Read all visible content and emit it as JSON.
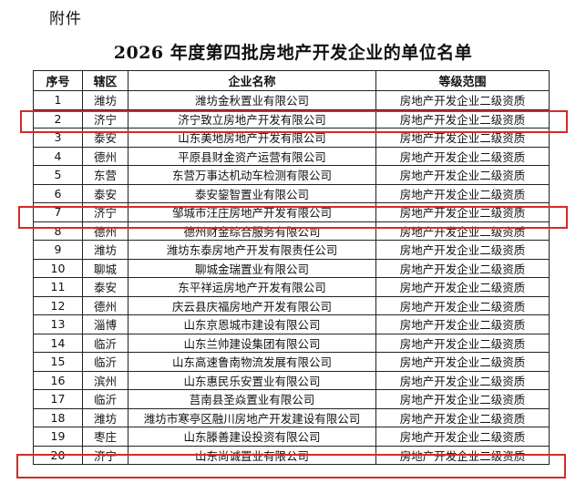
{
  "header": {
    "attachment_label": "附件",
    "title": "2026 年度第四批房地产开发企业的单位名单"
  },
  "table": {
    "columns": [
      "序号",
      "辖区",
      "企业名称",
      "等级范围"
    ],
    "rows": [
      {
        "no": "1",
        "district": "潍坊",
        "company": "潍坊金秋置业有限公司",
        "level": "房地产开发企业二级资质"
      },
      {
        "no": "2",
        "district": "济宁",
        "company": "济宁致立房地产开发有限公司",
        "level": "房地产开发企业二级资质"
      },
      {
        "no": "3",
        "district": "泰安",
        "company": "山东美地房地产开发有限公司",
        "level": "房地产开发企业二级资质"
      },
      {
        "no": "4",
        "district": "德州",
        "company": "平原县财金资产运营有限公司",
        "level": "房地产开发企业二级资质"
      },
      {
        "no": "5",
        "district": "东营",
        "company": "东营万事达机动车检测有限公司",
        "level": "房地产开发企业二级资质"
      },
      {
        "no": "6",
        "district": "泰安",
        "company": "泰安鋆智置业有限公司",
        "level": "房地产开发企业二级资质"
      },
      {
        "no": "7",
        "district": "济宁",
        "company": "邹城市汪庄房地产开发有限公司",
        "level": "房地产开发企业二级资质"
      },
      {
        "no": "8",
        "district": "德州",
        "company": "德州财金综合服务有限公司",
        "level": "房地产开发企业二级资质"
      },
      {
        "no": "9",
        "district": "潍坊",
        "company": "潍坊东泰房地产开发有限责任公司",
        "level": "房地产开发企业二级资质"
      },
      {
        "no": "10",
        "district": "聊城",
        "company": "聊城金瑞置业有限公司",
        "level": "房地产开发企业二级资质"
      },
      {
        "no": "11",
        "district": "泰安",
        "company": "东平祥运房地产开发有限公司",
        "level": "房地产开发企业二级资质"
      },
      {
        "no": "12",
        "district": "德州",
        "company": "庆云县庆福房地产开发有限公司",
        "level": "房地产开发企业二级资质"
      },
      {
        "no": "13",
        "district": "淄博",
        "company": "山东京恩城市建设有限公司",
        "level": "房地产开发企业二级资质"
      },
      {
        "no": "14",
        "district": "临沂",
        "company": "山东兰帅建设集团有限公司",
        "level": "房地产开发企业二级资质"
      },
      {
        "no": "15",
        "district": "临沂",
        "company": "山东高速鲁南物流发展有限公司",
        "level": "房地产开发企业二级资质"
      },
      {
        "no": "16",
        "district": "滨州",
        "company": "山东惠民乐安置业有限公司",
        "level": "房地产开发企业二级资质"
      },
      {
        "no": "17",
        "district": "临沂",
        "company": "莒南县圣焱置业有限公司",
        "level": "房地产开发企业二级资质"
      },
      {
        "no": "18",
        "district": "潍坊",
        "company": "潍坊市寒亭区融川房地产开发建设有限公司",
        "level": "房地产开发企业二级资质"
      },
      {
        "no": "19",
        "district": "枣庄",
        "company": "山东滕善建设投资有限公司",
        "level": "房地产开发企业二级资质"
      },
      {
        "no": "20",
        "district": "济宁",
        "company": "山东尚诚置业有限公司",
        "level": "房地产开发企业二级资质"
      }
    ],
    "highlighted_rows": [
      "2",
      "7",
      "20"
    ],
    "highlight_color": "#d42a2a"
  }
}
